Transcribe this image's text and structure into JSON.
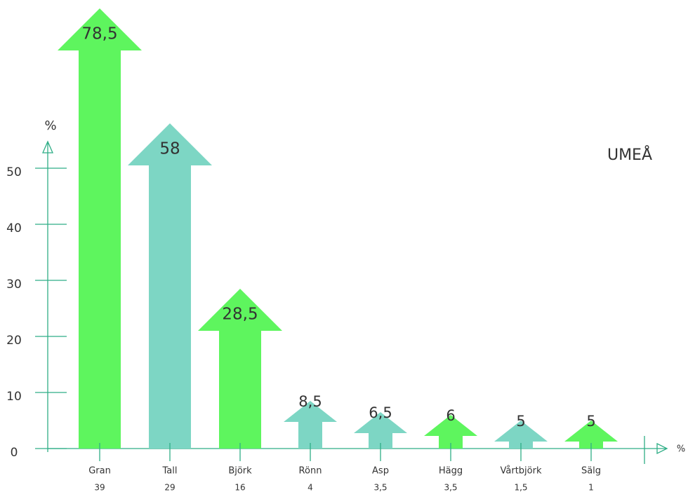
{
  "chart_data": {
    "type": "arrow-bar",
    "title": "UMEÅ",
    "y_label": "%",
    "x_label": "%",
    "categories": [
      "Gran",
      "Tall",
      "Björk",
      "Rönn",
      "Asp",
      "Hägg",
      "Vårtbjörk",
      "Sälg"
    ],
    "sub_labels": [
      "39",
      "29",
      "16",
      "4",
      "3,5",
      "3,5",
      "1,5",
      "1"
    ],
    "values": [
      78.5,
      58,
      28.5,
      8.5,
      6.5,
      6,
      5,
      5
    ],
    "value_labels": [
      "78,5",
      "58",
      "28,5",
      "8,5",
      "6,5",
      "6",
      "5",
      "5"
    ],
    "colors": [
      "#5ef55e",
      "#7dd6c4",
      "#5ef55e",
      "#7dd6c4",
      "#7dd6c4",
      "#5ef55e",
      "#7dd6c4",
      "#5ef55e"
    ],
    "ylim": [
      0,
      80
    ],
    "yticks": [
      0,
      10,
      20,
      30,
      40,
      50
    ]
  }
}
